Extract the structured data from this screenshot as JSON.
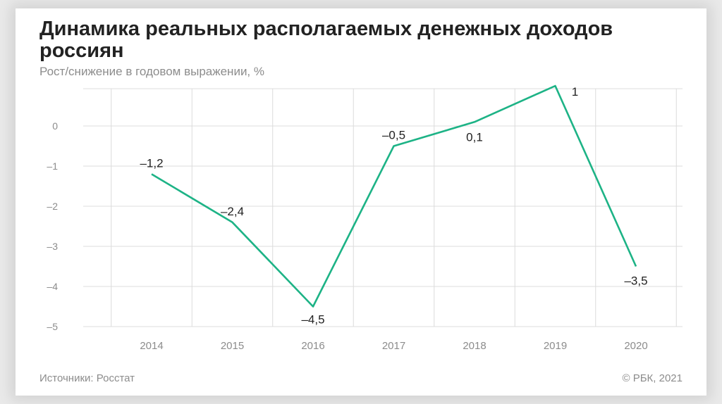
{
  "chart_data": {
    "type": "line",
    "title": "Динамика реальных располагаемых денежных доходов россиян",
    "subtitle": "Рост/снижение в годовом выражении, %",
    "categories": [
      "2014",
      "2015",
      "2016",
      "2017",
      "2018",
      "2019",
      "2020"
    ],
    "series": [
      {
        "values": [
          -1.2,
          -2.4,
          -4.5,
          -0.5,
          0.1,
          1,
          -3.5
        ],
        "labels": [
          "–1,2",
          "–2,4",
          "–4,5",
          "–0,5",
          "0,1",
          "1",
          "–3,5"
        ]
      }
    ],
    "yticks": [
      0,
      -1,
      -2,
      -3,
      -4,
      -5
    ],
    "ytick_labels": [
      "0",
      "–1",
      "–2",
      "–3",
      "–4",
      "–5"
    ],
    "ylim": [
      -5,
      1
    ],
    "grid": true,
    "line_color": "#1db386",
    "source": "Источники: Росстат",
    "copyright": "© РБК, 2021"
  }
}
